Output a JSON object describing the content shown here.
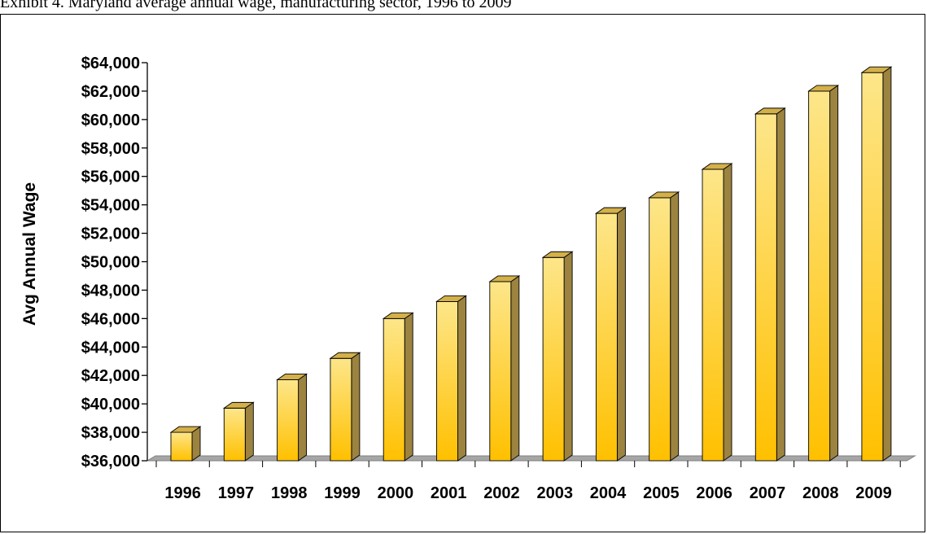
{
  "caption": "Exhibit 4. Maryland average annual wage, manufacturing sector, 1996 to 2009",
  "chart_data": {
    "type": "bar",
    "title": "",
    "xlabel": "",
    "ylabel": "Avg Annual Wage",
    "ylim": [
      36000,
      64000
    ],
    "ytick_step": 2000,
    "ytick_labels": [
      "$36,000",
      "$38,000",
      "$40,000",
      "$42,000",
      "$44,000",
      "$46,000",
      "$48,000",
      "$50,000",
      "$52,000",
      "$54,000",
      "$56,000",
      "$58,000",
      "$60,000",
      "$62,000",
      "$64,000"
    ],
    "categories": [
      "1996",
      "1997",
      "1998",
      "1999",
      "2000",
      "2001",
      "2002",
      "2003",
      "2004",
      "2005",
      "2006",
      "2007",
      "2008",
      "2009"
    ],
    "values": [
      38000,
      39700,
      41700,
      43200,
      46000,
      47200,
      48600,
      50300,
      53400,
      54500,
      56500,
      60400,
      62000,
      63300
    ],
    "grid": false,
    "legend": "none",
    "colors": {
      "bar_top": "#fde68a",
      "bar_bottom": "#ffc000",
      "bar_side": "#9c8340",
      "bar_cap": "#d4b04a",
      "floor": "#a6a6a6",
      "axis": "#000000"
    }
  }
}
